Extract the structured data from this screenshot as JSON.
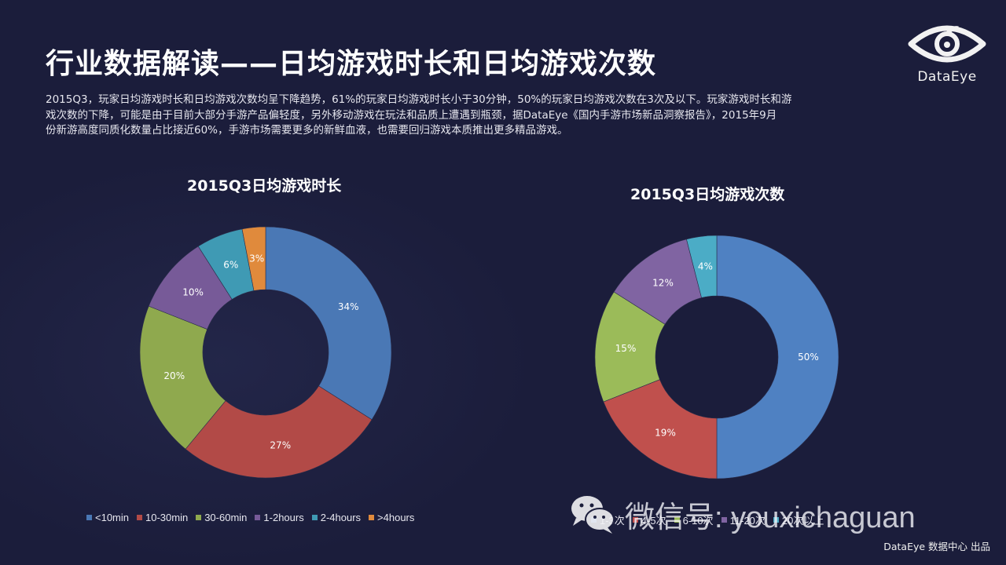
{
  "header": {
    "title": "行业数据解读——日均游戏时长和日均游戏次数",
    "description_lines": [
      "2015Q3，玩家日均游戏时长和日均游戏次数均呈下降趋势，61%的玩家日均游戏时长小于30分钟，50%的玩家日均游戏次数在3次及以下。玩家游戏时长和游",
      "戏次数的下降，可能是由于目前大部分手游产品偏轻度，另外移动游戏在玩法和品质上遭遇到瓶颈，据DataEye《国内手游市场新品洞察报告》，2015年9月",
      "份新游高度同质化数量占比接近60%，手游市场需要更多的新鲜血液，也需要回归游戏本质推出更多精品游戏。"
    ]
  },
  "logo": {
    "icon": "eye-icon",
    "text": "DataEye"
  },
  "colors": {
    "background": "#1b1d3b",
    "blue": "#4a78b5",
    "red": "#b24a47",
    "green": "#8fa94e",
    "purple": "#775a98",
    "cyan": "#3f9ab4",
    "orange": "#e08a3c"
  },
  "chart_data": [
    {
      "type": "pie",
      "variant": "donut",
      "title": "2015Q3日均游戏时长",
      "categories": [
        "<10min",
        "10-30min",
        "30-60min",
        "1-2hours",
        "2-4hours",
        ">4hours"
      ],
      "values": [
        34,
        27,
        20,
        10,
        6,
        3
      ],
      "labels": [
        "34%",
        "27%",
        "20%",
        "10%",
        "6%",
        "3%"
      ],
      "colors": [
        "#4a78b5",
        "#b24a47",
        "#8fa94e",
        "#775a98",
        "#3f9ab4",
        "#e08a3c"
      ],
      "legend_position": "bottom",
      "unit": "%"
    },
    {
      "type": "pie",
      "variant": "donut",
      "title": "2015Q3日均游戏次数",
      "categories": [
        "1-3次",
        "4-5次",
        "6-10次",
        "11-20次",
        "20次以上"
      ],
      "values": [
        50,
        19,
        15,
        12,
        4
      ],
      "labels": [
        "50%",
        "19%",
        "15%",
        "12%",
        "4%"
      ],
      "colors": [
        "#4f81c2",
        "#c0504d",
        "#9bbb59",
        "#8064a2",
        "#4bacc6"
      ],
      "legend_position": "bottom",
      "unit": "%"
    }
  ],
  "watermark": {
    "icon": "wechat-icon",
    "text": "微信号: youxichaguan"
  },
  "footer": {
    "text": "DataEye 数据中心 出品"
  }
}
